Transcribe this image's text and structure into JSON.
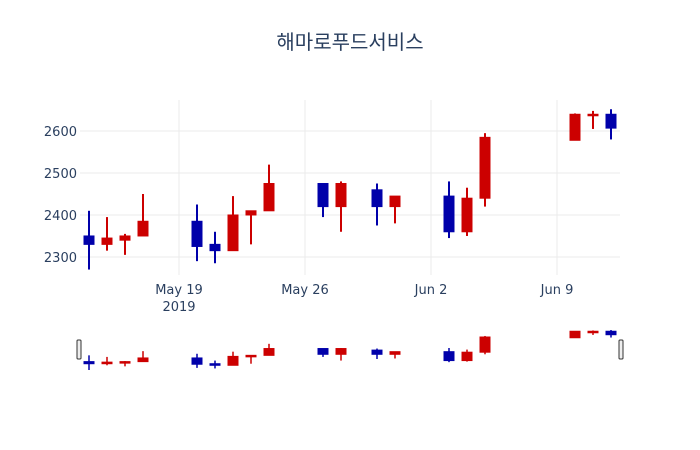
{
  "chart_data": {
    "type": "candlestick",
    "title": "해마로푸드서비스",
    "xlabel": "",
    "ylabel": "",
    "increasing_color": "#cc0000",
    "decreasing_color": "#0000aa",
    "grid": true,
    "x_range": [
      "2019-05-13T12:00",
      "2019-06-12T12:00"
    ],
    "ylim": [
      2257,
      2674
    ],
    "y_ticks": [
      2300,
      2400,
      2500,
      2600
    ],
    "x_ticks": [
      {
        "date": "2019-05-19",
        "label": "May 19",
        "sublabel": "2019"
      },
      {
        "date": "2019-05-26",
        "label": "May 26"
      },
      {
        "date": "2019-06-02",
        "label": "Jun 2"
      },
      {
        "date": "2019-06-09",
        "label": "Jun 9"
      }
    ],
    "rangeslider": true,
    "candles": [
      {
        "date": "2019-05-14",
        "open": 2350,
        "high": 2410,
        "low": 2270,
        "close": 2330
      },
      {
        "date": "2019-05-15",
        "open": 2330,
        "high": 2395,
        "low": 2315,
        "close": 2345
      },
      {
        "date": "2019-05-16",
        "open": 2340,
        "high": 2355,
        "low": 2305,
        "close": 2350
      },
      {
        "date": "2019-05-17",
        "open": 2350,
        "high": 2450,
        "low": 2350,
        "close": 2385
      },
      {
        "date": "2019-05-20",
        "open": 2385,
        "high": 2425,
        "low": 2290,
        "close": 2325
      },
      {
        "date": "2019-05-21",
        "open": 2330,
        "high": 2360,
        "low": 2285,
        "close": 2315
      },
      {
        "date": "2019-05-22",
        "open": 2315,
        "high": 2445,
        "low": 2315,
        "close": 2400
      },
      {
        "date": "2019-05-23",
        "open": 2400,
        "high": 2410,
        "low": 2330,
        "close": 2410
      },
      {
        "date": "2019-05-24",
        "open": 2410,
        "high": 2520,
        "low": 2410,
        "close": 2475
      },
      {
        "date": "2019-05-27",
        "open": 2475,
        "high": 2475,
        "low": 2395,
        "close": 2420
      },
      {
        "date": "2019-05-28",
        "open": 2420,
        "high": 2480,
        "low": 2360,
        "close": 2475
      },
      {
        "date": "2019-05-30",
        "open": 2460,
        "high": 2475,
        "low": 2375,
        "close": 2420
      },
      {
        "date": "2019-05-31",
        "open": 2420,
        "high": 2445,
        "low": 2380,
        "close": 2445
      },
      {
        "date": "2019-06-03",
        "open": 2445,
        "high": 2480,
        "low": 2345,
        "close": 2360
      },
      {
        "date": "2019-06-04",
        "open": 2360,
        "high": 2465,
        "low": 2350,
        "close": 2440
      },
      {
        "date": "2019-06-05",
        "open": 2440,
        "high": 2595,
        "low": 2420,
        "close": 2585
      },
      {
        "date": "2019-06-10",
        "open": 2578,
        "high": 2642,
        "low": 2578,
        "close": 2640
      },
      {
        "date": "2019-06-11",
        "open": 2637,
        "high": 2648,
        "low": 2605,
        "close": 2640
      },
      {
        "date": "2019-06-12",
        "open": 2640,
        "high": 2652,
        "low": 2580,
        "close": 2607
      }
    ]
  }
}
